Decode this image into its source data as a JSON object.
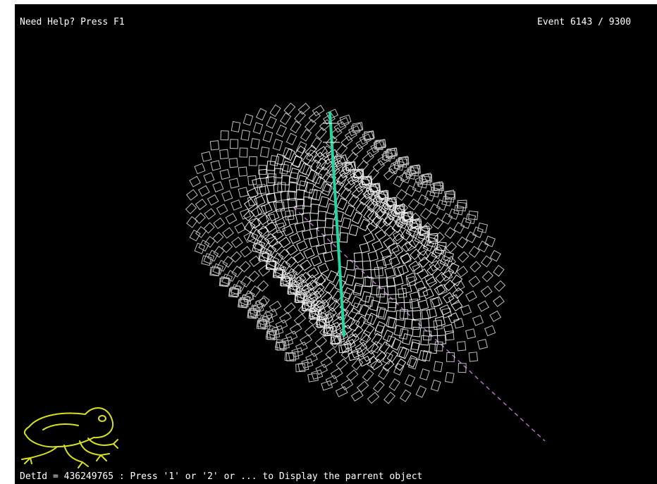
{
  "hud": {
    "help_text": "Need Help? Press F1",
    "event_counter": "Event 6143 / 9300",
    "status_bar": "DetId = 436249765 : Press '1' or '2' or ... to Display the parrent object"
  },
  "colors": {
    "background": "#000000",
    "mesh": "#ffffff",
    "track": "#20d8a0",
    "axis": "#b070c0",
    "logo": "#d8e020",
    "hud_text": "#ffffff"
  },
  "icons": {
    "logo": "frog-logo-icon"
  }
}
